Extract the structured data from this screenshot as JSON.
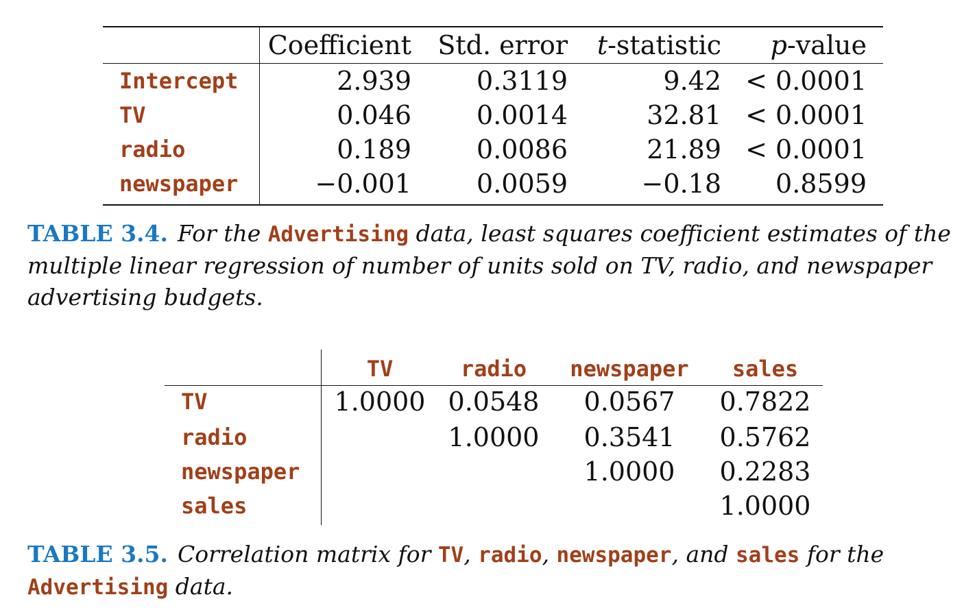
{
  "table_3_4": {
    "headers": [
      "Coefficient",
      "Std. error",
      "t-statistic",
      "p-value"
    ],
    "rows": [
      {
        "label": "Intercept",
        "values": [
          "2.939",
          "0.3119",
          "9.42",
          "< 0.0001"
        ]
      },
      {
        "label": "TV",
        "values": [
          "0.046",
          "0.0014",
          "32.81",
          "< 0.0001"
        ]
      },
      {
        "label": "radio",
        "values": [
          "0.189",
          "0.0086",
          "21.89",
          "< 0.0001"
        ]
      },
      {
        "label": "newspaper",
        "values": [
          "−0.001",
          "0.0059",
          "−0.18",
          "0.8599"
        ]
      }
    ]
  },
  "caption_3_4": {
    "label": "TABLE 3.4.",
    "part1": "For the ",
    "dataset": "Advertising",
    "part2": " data, least squares coefficient estimates of the",
    "line2": "multiple linear regression of number of units sold on TV, radio, and newspaper",
    "line3": "advertising budgets."
  },
  "table_3_5": {
    "headers": [
      "TV",
      "radio",
      "newspaper",
      "sales"
    ],
    "rows": [
      {
        "label": "TV",
        "values": [
          "1.0000",
          "0.0548",
          "0.0567",
          "0.7822"
        ]
      },
      {
        "label": "radio",
        "values": [
          "",
          "1.0000",
          "0.3541",
          "0.5762"
        ]
      },
      {
        "label": "newspaper",
        "values": [
          "",
          "",
          "1.0000",
          "0.2283"
        ]
      },
      {
        "label": "sales",
        "values": [
          "",
          "",
          "",
          "1.0000"
        ]
      }
    ]
  },
  "caption_3_5": {
    "label": "TABLE 3.5.",
    "part1": "Correlation matrix for ",
    "var1": "TV",
    "sep1": ", ",
    "var2": "radio",
    "sep2": ", ",
    "var3": "newspaper",
    "sep3": ", and ",
    "var4": "sales",
    "part2": " for the",
    "dataset": "Advertising",
    "part3": " data."
  },
  "colors": {
    "variable_text": "#a0401a",
    "caption_label": "#1a78c2",
    "body_text": "#111111"
  }
}
